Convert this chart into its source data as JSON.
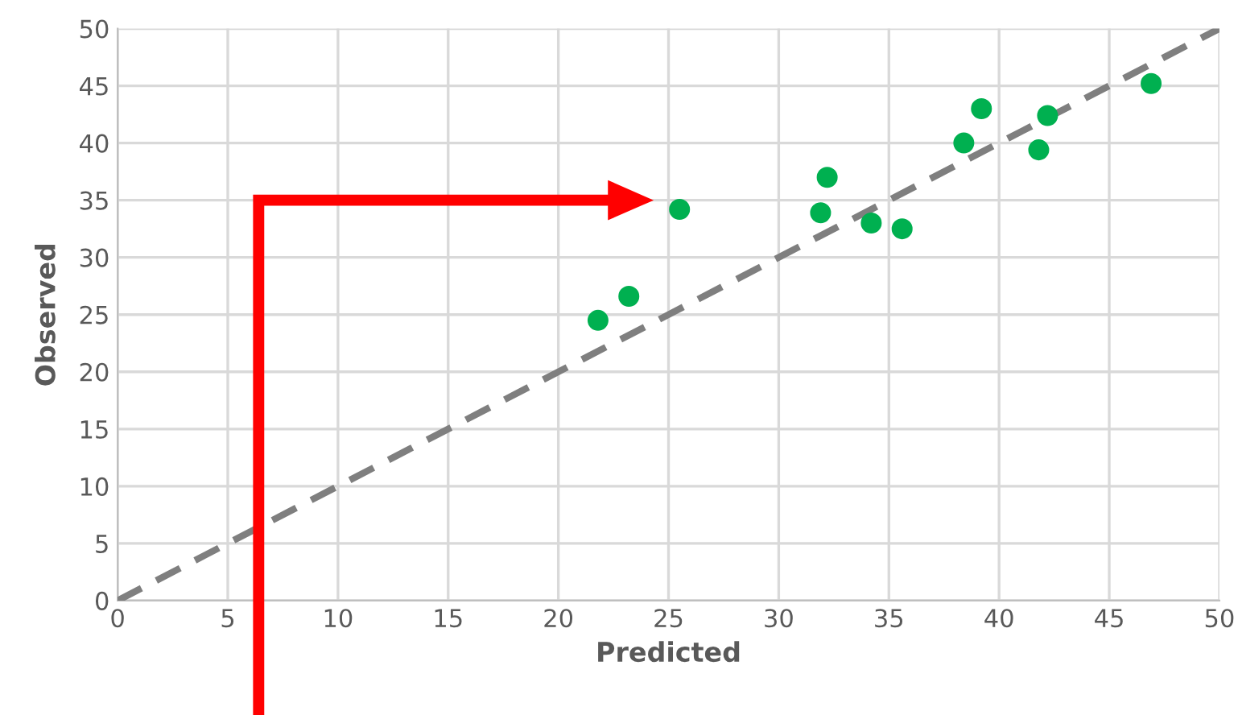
{
  "chart_data": {
    "type": "scatter",
    "xlabel": "Predicted",
    "ylabel": "Observed",
    "xlim": [
      0,
      50
    ],
    "ylim": [
      0,
      50
    ],
    "xticks": [
      0,
      5,
      10,
      15,
      20,
      25,
      30,
      35,
      40,
      45,
      50
    ],
    "yticks": [
      0,
      5,
      10,
      15,
      20,
      25,
      30,
      35,
      40,
      45,
      50
    ],
    "grid": true,
    "series": [
      {
        "marker": "circle",
        "color": "#00b050",
        "x": [
          21.8,
          23.2,
          25.5,
          31.9,
          32.2,
          34.2,
          35.6,
          38.4,
          39.2,
          41.8,
          42.2,
          46.9
        ],
        "values": [
          24.5,
          26.6,
          34.2,
          33.9,
          37.0,
          33.0,
          32.5,
          40.0,
          43.0,
          39.4,
          42.4,
          45.2
        ]
      },
      {
        "type": "line",
        "color": "#7f7f7f",
        "line_style": "dashed",
        "x": [
          0,
          50
        ],
        "values": [
          0,
          50
        ]
      }
    ]
  }
}
